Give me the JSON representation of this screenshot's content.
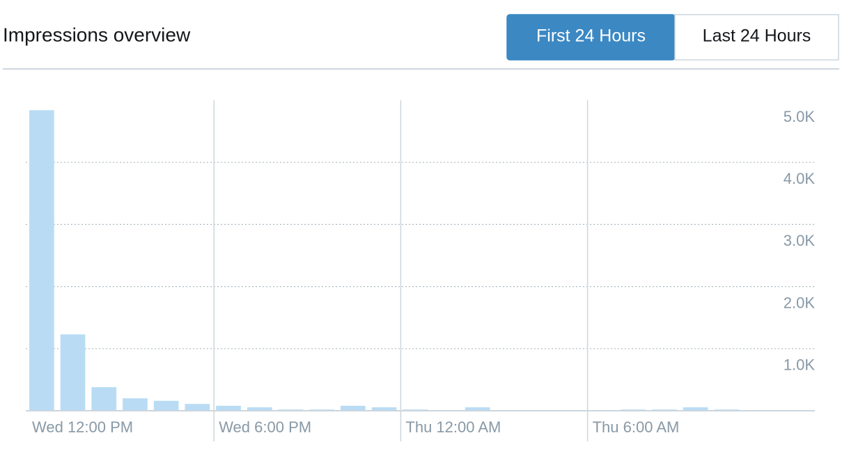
{
  "chart_data": {
    "type": "bar",
    "title": "Impressions overview",
    "categories": [
      "Wed 12:00 PM",
      null,
      null,
      null,
      null,
      null,
      "Wed 6:00 PM",
      null,
      null,
      null,
      null,
      null,
      "Thu 12:00 AM",
      null,
      null,
      null,
      null,
      null,
      "Thu 6:00 AM",
      null,
      null,
      null,
      null,
      null
    ],
    "values": [
      4840,
      1230,
      380,
      200,
      160,
      110,
      80,
      55,
      20,
      20,
      80,
      55,
      20,
      5,
      55,
      10,
      10,
      10,
      10,
      20,
      20,
      55,
      20,
      10
    ],
    "color": "#b9dcf4",
    "ylim": [
      0,
      5000
    ],
    "yticks": [
      {
        "value": 1000,
        "label": "1.0K"
      },
      {
        "value": 2000,
        "label": "2.0K"
      },
      {
        "value": 3000,
        "label": "3.0K"
      },
      {
        "value": 4000,
        "label": "4.0K"
      },
      {
        "value": 5000,
        "label": "5.0K"
      }
    ],
    "grid": true
  },
  "buttons": [
    {
      "label": "First 24 Hours",
      "selected": true
    },
    {
      "label": "Last 24 Hours",
      "selected": false
    }
  ]
}
